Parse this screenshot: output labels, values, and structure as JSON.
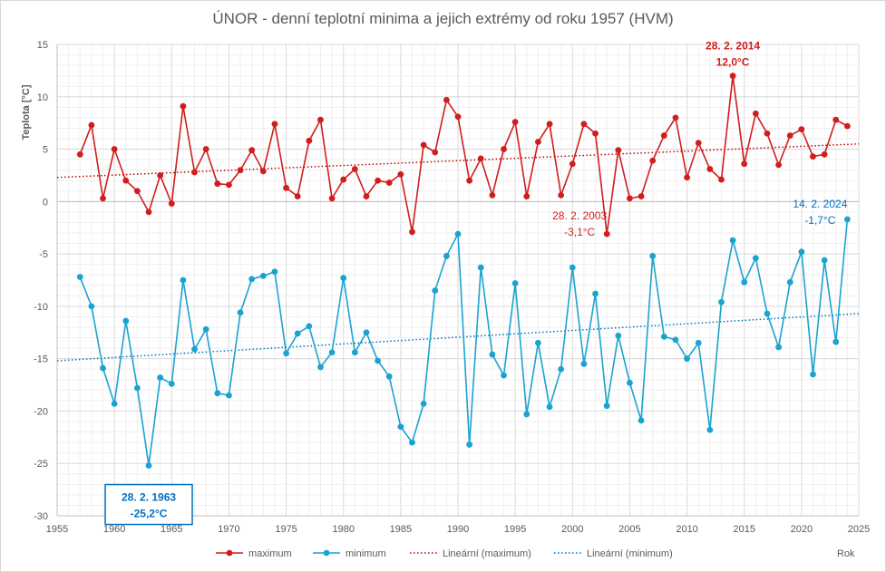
{
  "chart_data": {
    "type": "line",
    "title": "ÚNOR - denní teplotní minima a jejich extrémy od roku 1957 (HVM)",
    "ylabel": "Teplota  [°C]",
    "xlabel": "Rok",
    "xlim": [
      1955,
      2025
    ],
    "ylim": [
      -30,
      15
    ],
    "x_ticks": [
      1955,
      1960,
      1965,
      1970,
      1975,
      1980,
      1985,
      1990,
      1995,
      2000,
      2005,
      2010,
      2015,
      2020,
      2025
    ],
    "y_ticks": [
      15,
      10,
      5,
      0,
      -5,
      -10,
      -15,
      -20,
      -25,
      -30
    ],
    "grid": true,
    "legend_position": "bottom",
    "x": [
      1957,
      1958,
      1959,
      1960,
      1961,
      1962,
      1963,
      1964,
      1965,
      1966,
      1967,
      1968,
      1969,
      1970,
      1971,
      1972,
      1973,
      1974,
      1975,
      1976,
      1977,
      1978,
      1979,
      1980,
      1981,
      1982,
      1983,
      1984,
      1985,
      1986,
      1987,
      1988,
      1989,
      1990,
      1991,
      1992,
      1993,
      1994,
      1995,
      1996,
      1997,
      1998,
      1999,
      2000,
      2001,
      2002,
      2003,
      2004,
      2005,
      2006,
      2007,
      2008,
      2009,
      2010,
      2011,
      2012,
      2013,
      2014,
      2015,
      2016,
      2017,
      2018,
      2019,
      2020,
      2021,
      2022,
      2023,
      2024
    ],
    "series": [
      {
        "name": "maximum",
        "color": "#d11d1d",
        "values": [
          4.5,
          7.3,
          0.3,
          5.0,
          2.0,
          1.0,
          -1.0,
          2.5,
          -0.2,
          9.1,
          2.8,
          5.0,
          1.7,
          1.6,
          3.0,
          4.9,
          2.9,
          7.4,
          1.3,
          0.5,
          5.8,
          7.8,
          0.3,
          2.1,
          3.1,
          0.5,
          2.0,
          1.8,
          2.6,
          -2.9,
          5.4,
          4.7,
          9.7,
          8.1,
          2.0,
          4.1,
          0.6,
          5.0,
          7.6,
          0.5,
          5.7,
          7.4,
          0.6,
          3.6,
          7.4,
          6.5,
          -3.1,
          4.9,
          0.3,
          0.5,
          3.9,
          6.3,
          8.0,
          2.3,
          5.6,
          3.1,
          2.1,
          12.0,
          3.6,
          8.4,
          6.5,
          3.5,
          6.3,
          6.9,
          4.3,
          4.5,
          7.8,
          7.2
        ]
      },
      {
        "name": "minimum",
        "color": "#1aa3d1",
        "values": [
          -7.2,
          -10.0,
          -15.9,
          -19.3,
          -11.4,
          -17.8,
          -25.2,
          -16.8,
          -17.4,
          -7.5,
          -14.1,
          -12.2,
          -18.3,
          -18.5,
          -10.6,
          -7.4,
          -7.1,
          -6.7,
          -14.5,
          -12.6,
          -11.9,
          -15.8,
          -14.4,
          -7.3,
          -14.4,
          -12.5,
          -15.2,
          -16.7,
          -21.5,
          -23.0,
          -19.3,
          -8.5,
          -5.2,
          -3.1,
          -23.2,
          -6.3,
          -14.6,
          -16.6,
          -7.8,
          -20.3,
          -13.5,
          -19.6,
          -16.0,
          -6.3,
          -15.5,
          -8.8,
          -19.5,
          -12.8,
          -17.3,
          -20.9,
          -5.2,
          -12.9,
          -13.2,
          -15.0,
          -13.5,
          -21.8,
          -9.6,
          -3.7,
          -7.7,
          -5.4,
          -10.7,
          -13.9,
          -7.7,
          -4.8,
          -16.5,
          -5.6,
          -13.4,
          -1.7
        ]
      }
    ],
    "trendlines": [
      {
        "name": "Lineární (maximum)",
        "color": "#c00000",
        "x": [
          1955,
          2025
        ],
        "y": [
          2.3,
          5.5
        ]
      },
      {
        "name": "Lineární (minimum)",
        "color": "#0070c0",
        "x": [
          1955,
          2025
        ],
        "y": [
          -15.2,
          -10.7
        ]
      }
    ],
    "annotations": [
      {
        "lines": [
          "28. 2. 2014",
          "12,0°C"
        ],
        "x": 2014,
        "y": 12.0,
        "color": "#d11d1d",
        "bold": true,
        "boxed": false
      },
      {
        "lines": [
          "28. 2. 2003",
          "-3,1°C"
        ],
        "x": 2003,
        "y": -3.1,
        "color": "#d11d1d",
        "bold": false,
        "boxed": false
      },
      {
        "lines": [
          "14. 2. 2024",
          "-1,7°C"
        ],
        "x": 2024,
        "y": -1.7,
        "color": "#0070c0",
        "bold": false,
        "boxed": false
      },
      {
        "lines": [
          "28. 2. 1963",
          "-25,2°C"
        ],
        "x": 1963,
        "y": -25.2,
        "color": "#0070c0",
        "bold": true,
        "boxed": true
      }
    ]
  }
}
